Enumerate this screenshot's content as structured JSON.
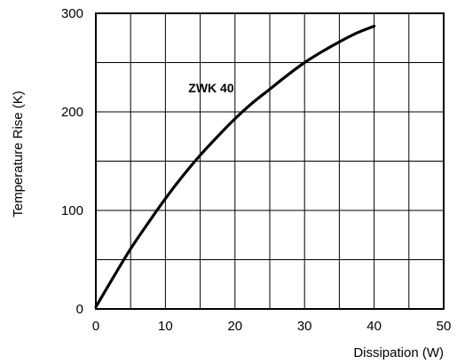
{
  "chart_data": {
    "type": "line",
    "xlabel": "Dissipation (W)",
    "ylabel": "Temperature Rise (K)",
    "xlim": [
      0,
      50
    ],
    "ylim": [
      0,
      300
    ],
    "x_ticks": [
      0,
      10,
      20,
      30,
      40,
      50
    ],
    "y_ticks": [
      0,
      100,
      200,
      300
    ],
    "x_grid_step": 5,
    "y_grid_step": 50,
    "grid": true,
    "series": [
      {
        "name": "ZWK 40",
        "x": [
          0,
          2.5,
          5,
          7.5,
          10,
          12.5,
          15,
          17.5,
          20,
          22.5,
          25,
          27.5,
          30,
          32.5,
          35,
          37.5,
          40
        ],
        "y": [
          2,
          32,
          61,
          87,
          112,
          135,
          156,
          175,
          193,
          209,
          223,
          237,
          250,
          261,
          271,
          280,
          287
        ]
      }
    ]
  }
}
